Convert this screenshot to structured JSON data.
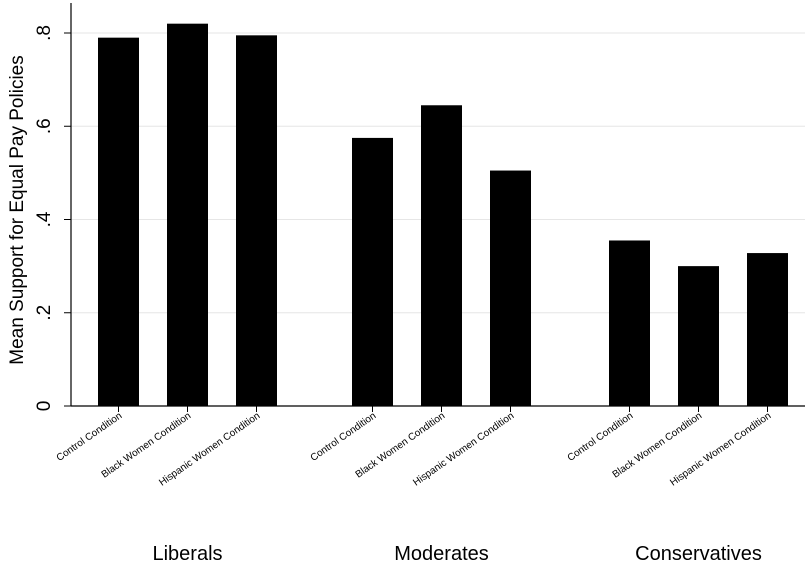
{
  "chart_data": {
    "type": "bar",
    "title": "",
    "xlabel": "",
    "ylabel": "Mean Support for Equal Pay Policies",
    "ylim": [
      0,
      0.85
    ],
    "yticks": [
      0,
      0.2,
      0.4,
      0.6,
      0.8
    ],
    "ytick_labels": [
      "0",
      ".2",
      ".4",
      ".6",
      ".8"
    ],
    "grid": true,
    "bar_color": "#000000",
    "grid_color": "#e6e6e6",
    "groups": [
      {
        "name": "Liberals",
        "categories": [
          "Control Condition",
          "Black Women Condition",
          "Hispanic Women Condition"
        ],
        "values": [
          0.79,
          0.82,
          0.795
        ]
      },
      {
        "name": "Moderates",
        "categories": [
          "Control Condition",
          "Black Women Condition",
          "Hispanic Women Condition"
        ],
        "values": [
          0.575,
          0.645,
          0.505
        ]
      },
      {
        "name": "Conservatives",
        "categories": [
          "Control Condition",
          "Black Women Condition",
          "Hispanic Women Condition"
        ],
        "values": [
          0.355,
          0.3,
          0.328
        ]
      }
    ]
  }
}
